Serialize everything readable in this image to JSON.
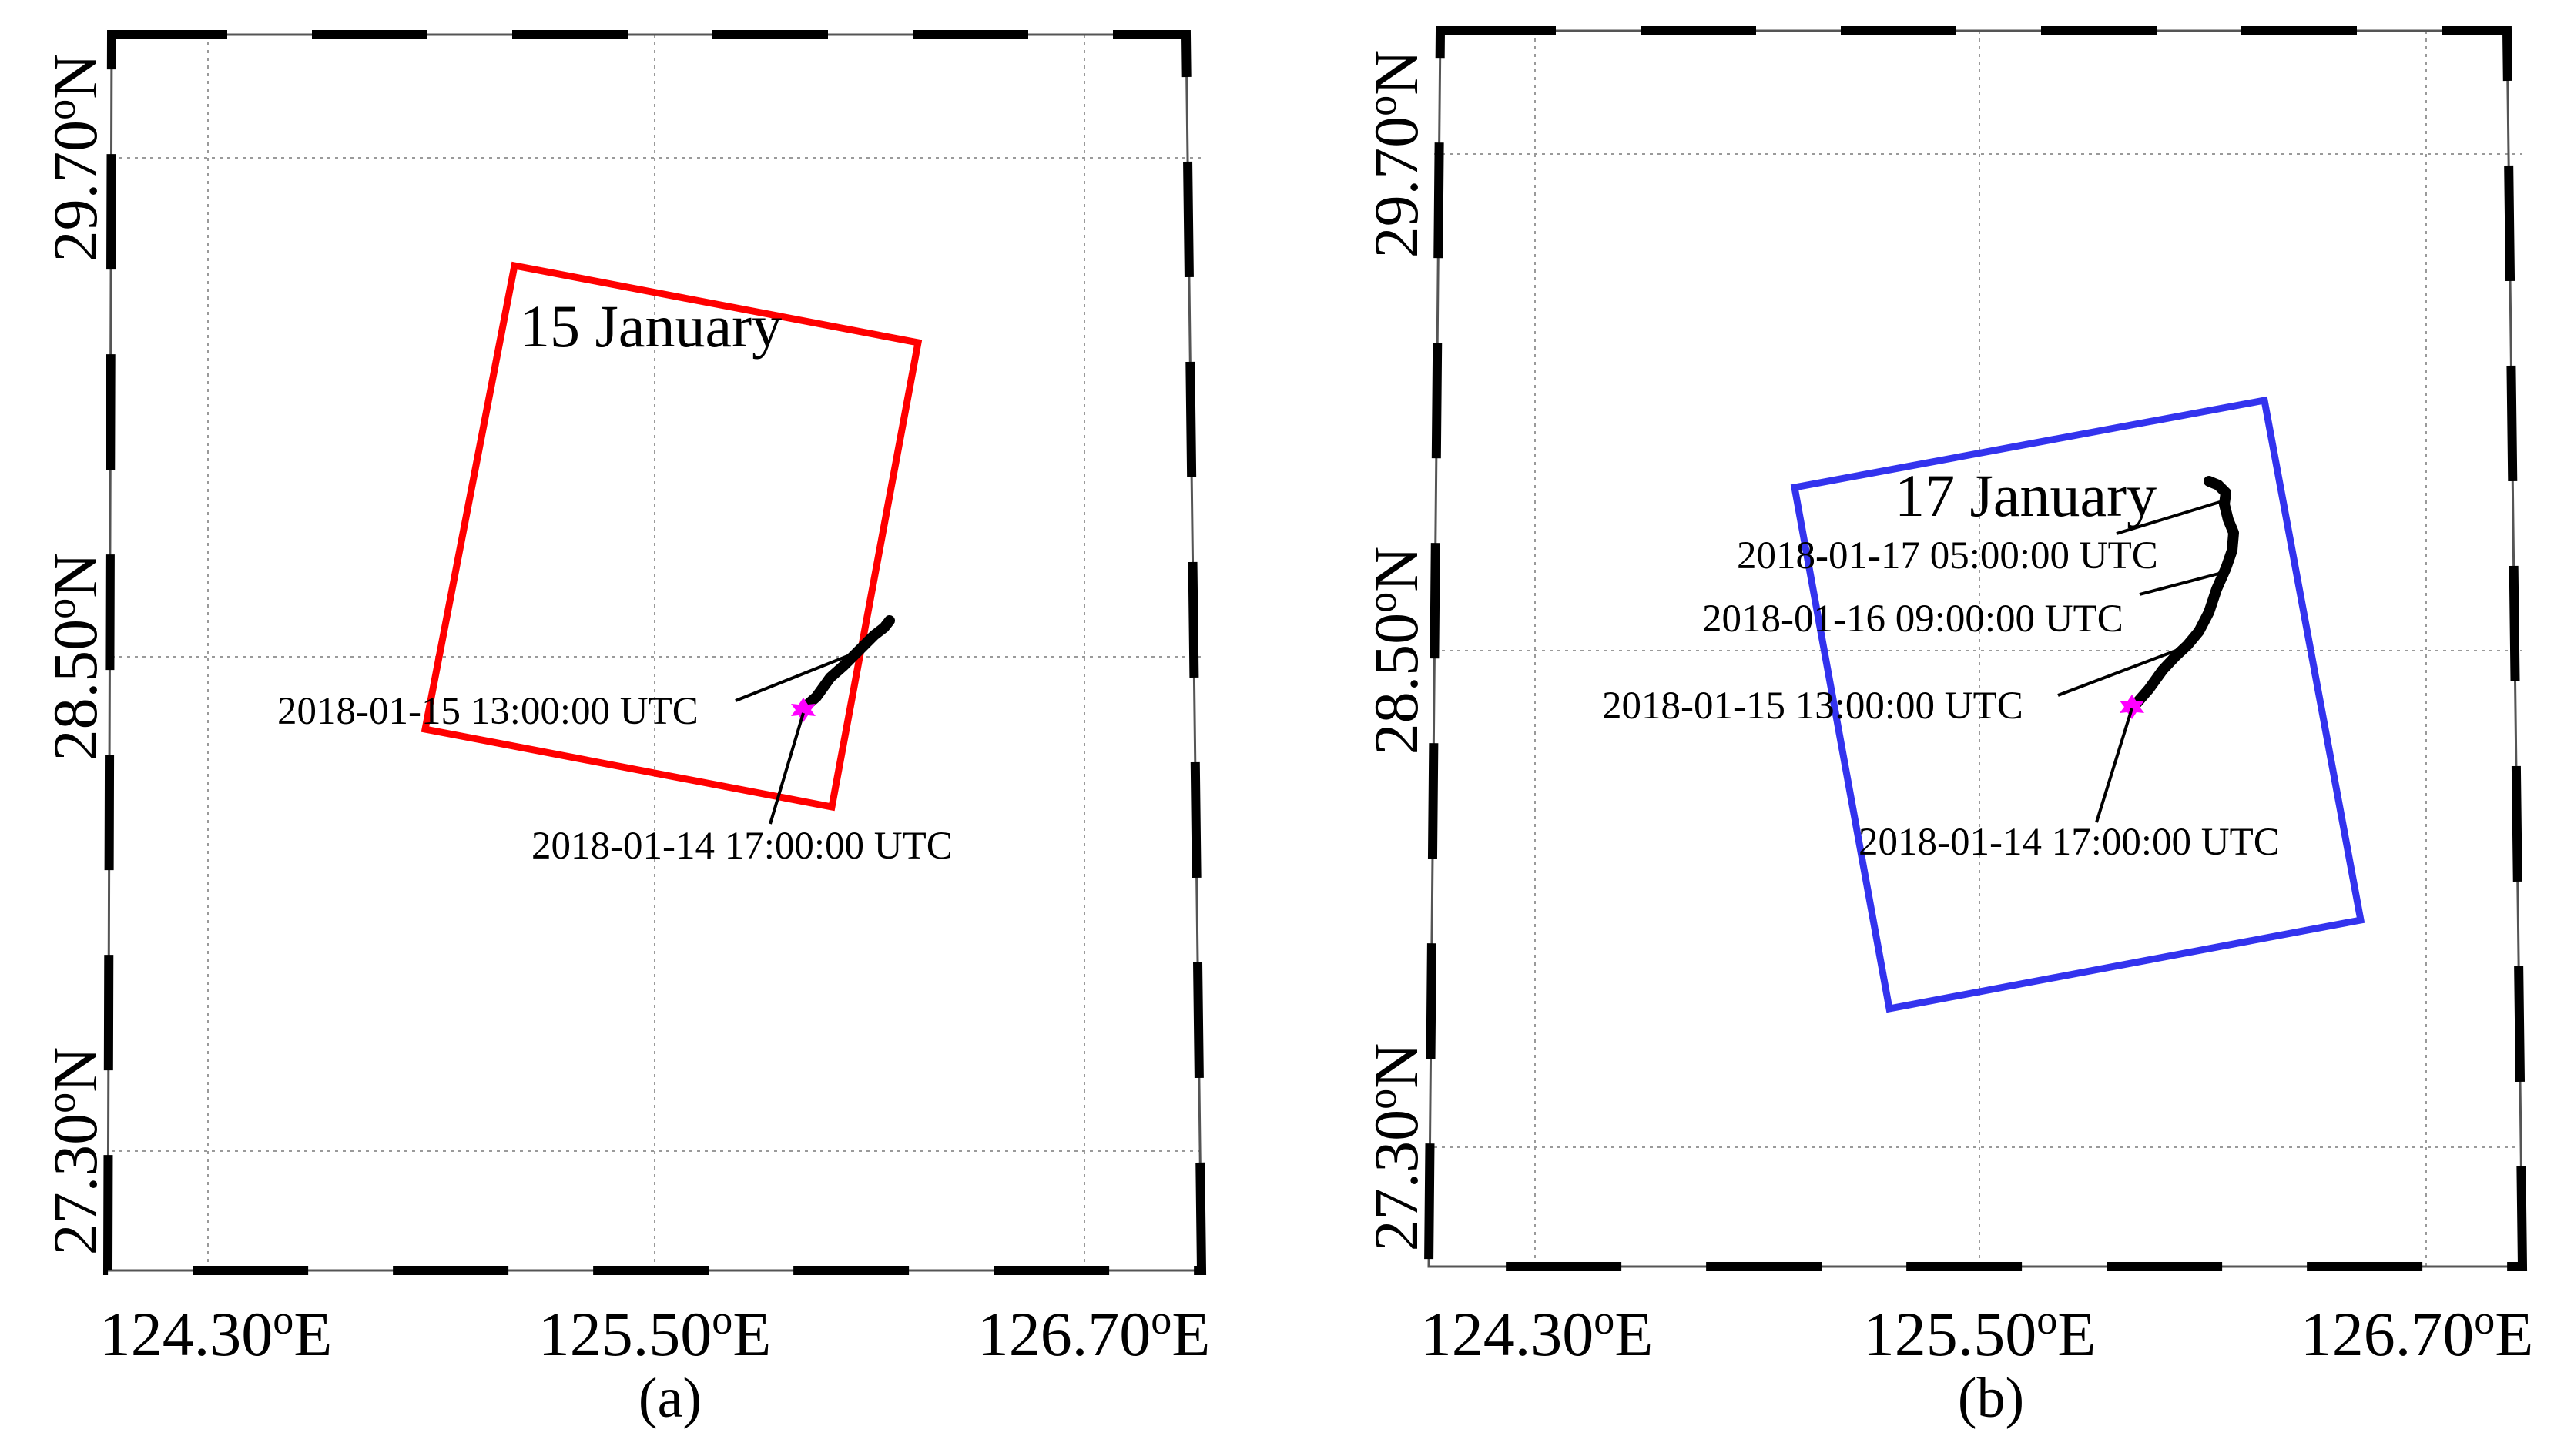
{
  "panels": [
    {
      "id": "a",
      "caption": "(a)",
      "date_label": "15 January",
      "footprint_color": "#ff0000",
      "date_label_color": "#ff4422",
      "lon_ticks": [
        "124.30",
        "125.50",
        "126.70"
      ],
      "lon_suffix": "E",
      "lat_ticks": [
        "29.70",
        "28.50",
        "27.30"
      ],
      "lat_suffix": "N",
      "degree_symbol": "o",
      "marker_color": "#ff00ff",
      "annotations": [
        "2018-01-15 13:00:00 UTC",
        "2018-01-14 17:00:00 UTC"
      ]
    },
    {
      "id": "b",
      "caption": "(b)",
      "date_label": "17 January",
      "footprint_color": "#3333ee",
      "date_label_color": "#3333ee",
      "lon_ticks": [
        "124.30",
        "125.50",
        "126.70"
      ],
      "lon_suffix": "E",
      "lat_ticks": [
        "29.70",
        "28.50",
        "27.30"
      ],
      "lat_suffix": "N",
      "degree_symbol": "o",
      "marker_color": "#ff00ff",
      "annotations": [
        "2018-01-17 05:00:00 UTC",
        "2018-01-16 09:00:00 UTC",
        "2018-01-15 13:00:00 UTC",
        "2018-01-14 17:00:00 UTC"
      ]
    }
  ]
}
